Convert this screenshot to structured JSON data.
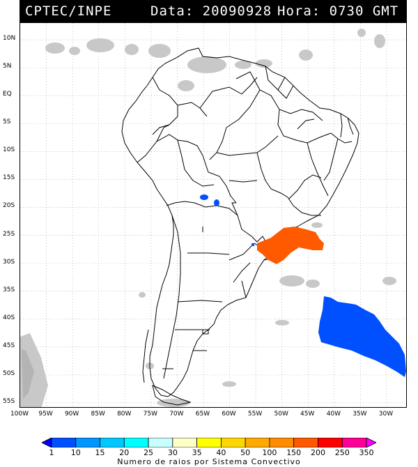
{
  "header": {
    "source": "CPTEC/INPE",
    "date_text": "Data: 20090928",
    "time_text": "Hora: 0730 GMT"
  },
  "map": {
    "lat_labels": [
      "10N",
      "5N",
      "EQ",
      "5S",
      "10S",
      "15S",
      "20S",
      "25S",
      "30S",
      "35S",
      "40S",
      "45S",
      "50S",
      "55S"
    ],
    "lon_labels": [
      "100W",
      "95W",
      "90W",
      "85W",
      "80W",
      "75W",
      "70W",
      "65W",
      "60W",
      "55W",
      "50W",
      "45W",
      "40W",
      "35W",
      "30W"
    ],
    "lon_range": [
      -100,
      -26
    ],
    "lat_range": [
      -56,
      13
    ],
    "colors": {
      "land_outline": "#000000",
      "gridline": "#999999",
      "cloud": "#c8c8c8",
      "convective_orange": "#ff5a00",
      "convective_blue": "#0050ff"
    }
  },
  "legend": {
    "labels": [
      "1",
      "10",
      "15",
      "20",
      "25",
      "30",
      "35",
      "40",
      "50",
      "100",
      "150",
      "200",
      "250",
      "350"
    ],
    "colors": [
      "#0000ff",
      "#0050ff",
      "#0096ff",
      "#00c8ff",
      "#00ffff",
      "#c8ffff",
      "#ffffc8",
      "#ffff00",
      "#ffd700",
      "#ffaa00",
      "#ff8c00",
      "#ff5a00",
      "#ff0000",
      "#ff0096",
      "#ff00ff"
    ],
    "title": "Numero de raios por Sistema Convectivo"
  }
}
